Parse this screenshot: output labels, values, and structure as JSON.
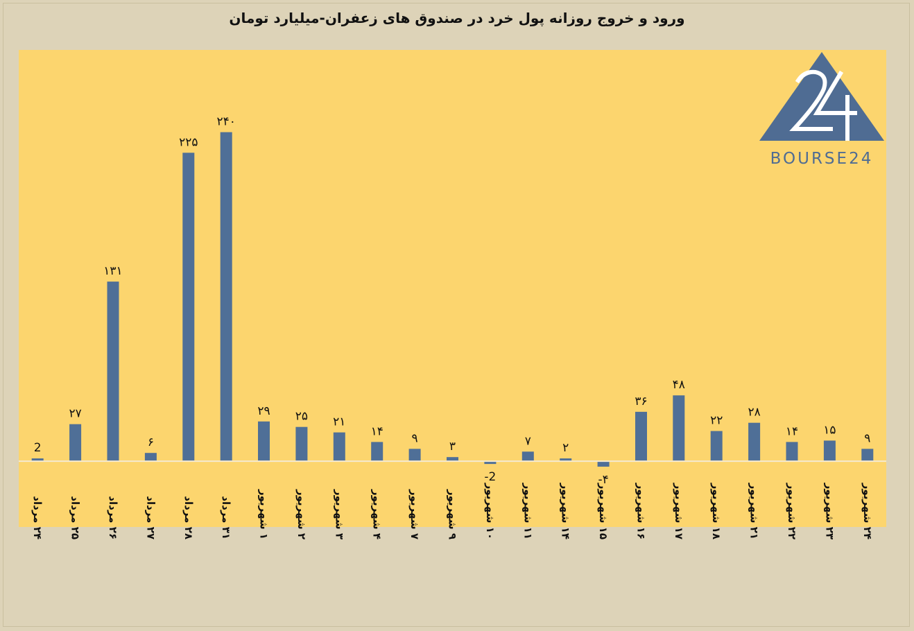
{
  "chart_data": {
    "type": "bar",
    "title": "ورود و خروج روزانه پول خرد در صندوق های زعفران-میلیارد تومان",
    "categories": [
      "۲۴ مرداد",
      "۲۵ مرداد",
      "۲۶ مرداد",
      "۲۷ مرداد",
      "۲۸ مرداد",
      "۳۱ مرداد",
      "۱ شهریور",
      "۲ شهریور",
      "۳ شهریور",
      "۴ شهریور",
      "۷ شهریور",
      "۹ شهریور",
      "۱۰ شهریور",
      "۱۱ شهریور",
      "۱۴ شهریور",
      "۱۵ شهریور",
      "۱۶ شهریور",
      "۱۷ شهریور",
      "۱۸ شهریور",
      "۲۱ شهریور",
      "۲۲ شهریور",
      "۲۳ شهریور",
      "۲۴ شهریور"
    ],
    "values": [
      2,
      27,
      131,
      6,
      225,
      240,
      29,
      25,
      21,
      14,
      9,
      3,
      -2,
      7,
      2,
      -4,
      36,
      48,
      22,
      28,
      14,
      15,
      9
    ],
    "value_labels": [
      "2",
      "۲۷",
      "۱۳۱",
      "۶",
      "۲۲۵",
      "۲۴۰",
      "۲۹",
      "۲۵",
      "۲۱",
      "۱۴",
      "۹",
      "۳",
      "-2",
      "۷",
      "۲",
      "-۴",
      "۳۶",
      "۴۸",
      "۲۲",
      "۲۸",
      "۱۴",
      "۱۵",
      "۹"
    ],
    "xlabel": "",
    "ylabel": "",
    "ylim": [
      -48,
      300
    ],
    "grid": false,
    "legend": "none",
    "colors": {
      "bar": "#4f6f97",
      "plot_background": "#fcd56e",
      "page_background": "#ddd3b8",
      "zero_line": "#f5ead0"
    }
  },
  "logo": {
    "mark": "24",
    "text": "BOURSE24",
    "color": "#4f6c93"
  }
}
